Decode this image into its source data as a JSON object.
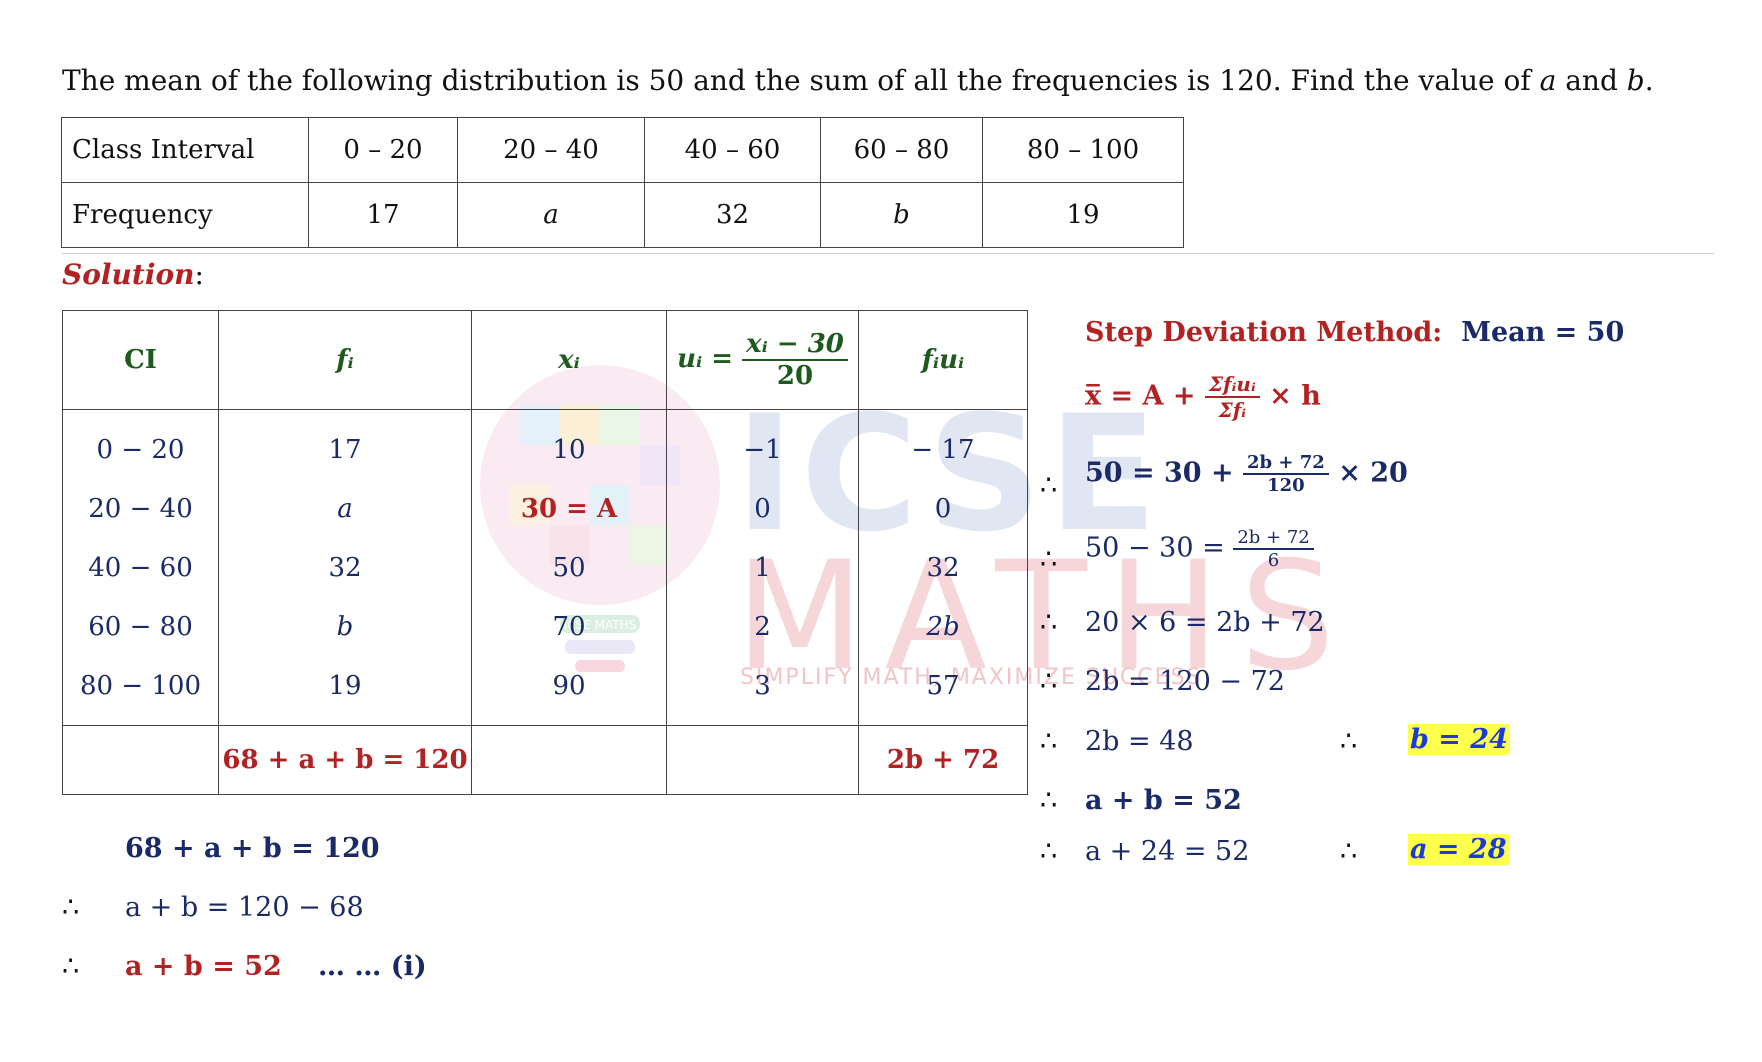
{
  "question": {
    "text_1": "The mean of the following distribution is ",
    "mean": "50",
    "text_2": " and the sum of all the frequencies is ",
    "sum": "120",
    "text_3": ". Find the value of ",
    "var_a": "a",
    "text_4": " and ",
    "var_b": "b",
    "text_5": "."
  },
  "question_table": {
    "row1_label": "Class Interval",
    "intervals": [
      "0 – 20",
      "20 – 40",
      "40 – 60",
      "60 – 80",
      "80 – 100"
    ],
    "row2_label": "Frequency",
    "frequencies": [
      "17",
      "a",
      "32",
      "b",
      "19"
    ]
  },
  "solution_label": "Solution",
  "solution_colon": ":",
  "solution_table": {
    "headers": {
      "ci": "CI",
      "fi": "fᵢ",
      "xi": "xᵢ",
      "ui_lhs": "uᵢ =",
      "ui_num": "xᵢ − 30",
      "ui_den": "20",
      "fiui": "fᵢuᵢ"
    },
    "rows": [
      {
        "ci": "0 − 20",
        "fi": "17",
        "xi": "10",
        "ui": "−1",
        "fiui": "− 17"
      },
      {
        "ci": "20 − 40",
        "fi": "a",
        "xi": "30 = A",
        "ui": "0",
        "fiui": "0"
      },
      {
        "ci": "40 − 60",
        "fi": "32",
        "xi": "50",
        "ui": "1",
        "fiui": "32"
      },
      {
        "ci": "60 − 80",
        "fi": "b",
        "xi": "70",
        "ui": "2",
        "fiui": "2b"
      },
      {
        "ci": "80 − 100",
        "fi": "19",
        "xi": "90",
        "ui": "3",
        "fiui": "57"
      }
    ],
    "total_fi": "68 + a + b = 120",
    "total_fiui": "2b + 72"
  },
  "left_steps": {
    "line1": "68 + a + b = 120",
    "therefore_symbol": "∴",
    "line2": "a + b = 120 − 68",
    "line3": "a + b = 52",
    "line3_ref": "… … (i)"
  },
  "right_steps": {
    "method_label": "Step Deviation Method:",
    "method_mean": "Mean = 50",
    "formula_lhs": "x̅ = A +",
    "formula_num": "Σfᵢuᵢ",
    "formula_den": "Σfᵢ",
    "formula_rhs": "× h",
    "step1_lhs": "50 = 30 +",
    "step1_num": "2b + 72",
    "step1_den": "120",
    "step1_rhs": "× 20",
    "step2_lhs": "50 − 30 =",
    "step2_num": "2b + 72",
    "step2_den": "6",
    "step3": "20 × 6 = 2b + 72",
    "step4": "2b = 120 − 72",
    "step5": "2b = 48",
    "result_b": "b = 24",
    "step6": "a + b = 52",
    "step7": "a + 24 = 52",
    "result_a": "a = 28"
  },
  "watermark": {
    "brand": "ICSE",
    "brand2": "MATHS",
    "tagline": "SIMPLIFY MATH, MAXIMIZE SUCCESS",
    "bulb_label": "ICSE MATHS"
  },
  "colors": {
    "red": "#b22222",
    "navy": "#1a2a66",
    "green": "#1e5a1e",
    "highlight": "#ffff4d"
  }
}
